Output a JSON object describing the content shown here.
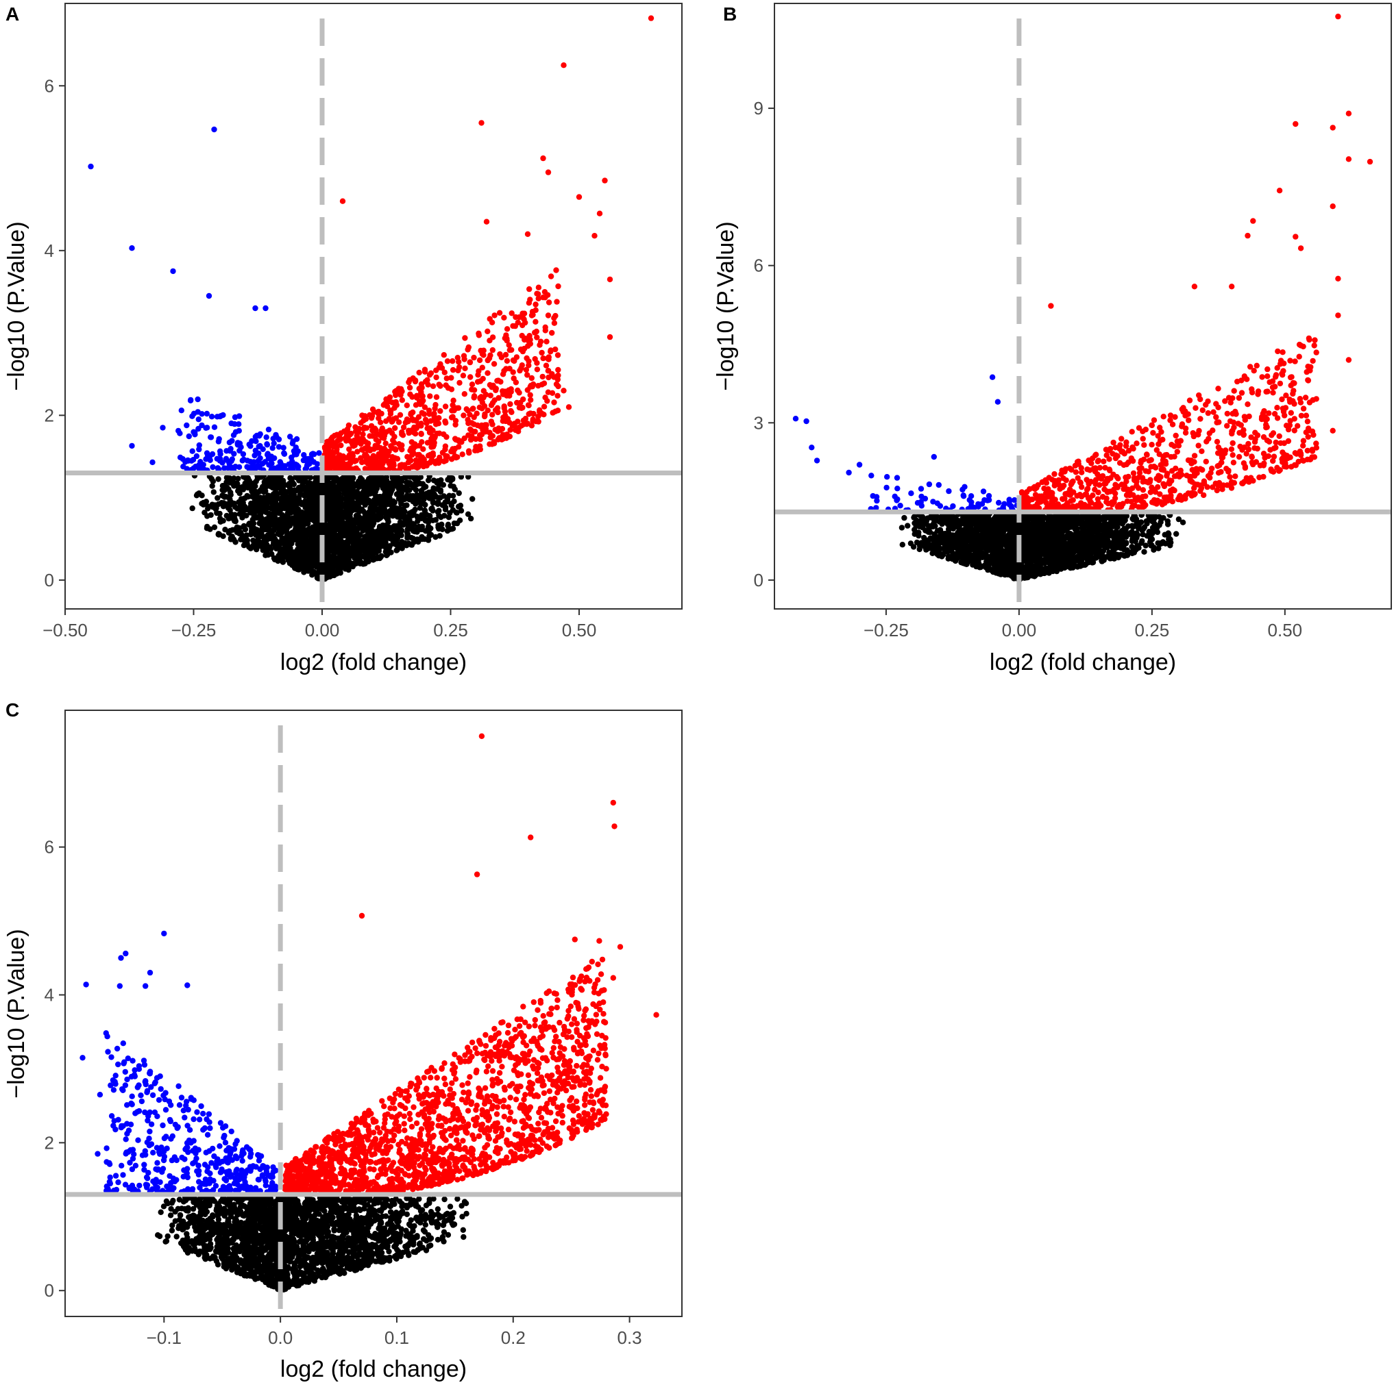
{
  "colors": {
    "up": "#ff0000",
    "down": "#0000ff",
    "ns": "#000000",
    "threshold": "#bebebe"
  },
  "chart_data": [
    {
      "panel": "A",
      "type": "scatter",
      "xlabel": "log2 (fold change)",
      "ylabel": "−log10 (P.Value)",
      "xlim": [
        -0.5,
        0.7
      ],
      "ylim": [
        -0.35,
        7.0
      ],
      "xticks": [
        -0.5,
        -0.25,
        0.0,
        0.25,
        0.5
      ],
      "xtick_labels": [
        "−0.50",
        "−0.25",
        "0.00",
        "0.25",
        "0.50"
      ],
      "yticks": [
        0,
        2,
        4,
        6
      ],
      "ytick_labels": [
        "0",
        "2",
        "4",
        "6"
      ],
      "vline": 0.0,
      "hline": 1.3,
      "outliers_up": [
        [
          0.64,
          6.82
        ],
        [
          0.47,
          6.25
        ],
        [
          0.31,
          5.55
        ],
        [
          0.43,
          5.12
        ],
        [
          0.44,
          4.95
        ],
        [
          0.55,
          4.85
        ],
        [
          0.5,
          4.65
        ],
        [
          0.54,
          4.45
        ],
        [
          0.53,
          4.18
        ],
        [
          0.04,
          4.6
        ],
        [
          0.56,
          3.65
        ],
        [
          0.56,
          2.95
        ],
        [
          0.47,
          2.3
        ],
        [
          0.48,
          2.1
        ],
        [
          0.32,
          4.35
        ],
        [
          0.4,
          4.2
        ]
      ],
      "outliers_down": [
        [
          -0.45,
          5.02
        ],
        [
          -0.21,
          5.47
        ],
        [
          -0.37,
          4.03
        ],
        [
          -0.29,
          3.75
        ],
        [
          -0.22,
          3.45
        ],
        [
          -0.13,
          3.3
        ],
        [
          -0.11,
          3.3
        ],
        [
          -0.37,
          1.63
        ],
        [
          -0.33,
          1.43
        ],
        [
          -0.31,
          1.85
        ]
      ],
      "cloud": {
        "up_xmax": 0.46,
        "up_ymax": 3.8,
        "down_xmin": -0.28,
        "down_ymax": 2.3,
        "ns_xmin": -0.26,
        "ns_xmax": 0.3,
        "n_up": 900,
        "n_down": 220,
        "n_ns": 2600
      }
    },
    {
      "panel": "B",
      "type": "scatter",
      "xlabel": "log2 (fold change)",
      "ylabel": "−log10 (P.Value)",
      "xlim": [
        -0.46,
        0.7
      ],
      "ylim": [
        -0.55,
        11.0
      ],
      "xticks": [
        -0.25,
        0.0,
        0.25,
        0.5
      ],
      "xtick_labels": [
        "−0.25",
        "0.00",
        "0.25",
        "0.50"
      ],
      "yticks": [
        0,
        3,
        6,
        9
      ],
      "ytick_labels": [
        "0",
        "3",
        "6",
        "9"
      ],
      "vline": 0.0,
      "hline": 1.3,
      "outliers_up": [
        [
          0.6,
          10.75
        ],
        [
          0.62,
          8.9
        ],
        [
          0.62,
          8.03
        ],
        [
          0.66,
          7.98
        ],
        [
          0.52,
          8.7
        ],
        [
          0.59,
          8.63
        ],
        [
          0.49,
          7.43
        ],
        [
          0.59,
          7.13
        ],
        [
          0.44,
          6.85
        ],
        [
          0.43,
          6.57
        ],
        [
          0.52,
          6.55
        ],
        [
          0.53,
          6.33
        ],
        [
          0.6,
          5.75
        ],
        [
          0.6,
          5.05
        ],
        [
          0.62,
          4.2
        ],
        [
          0.06,
          5.23
        ],
        [
          0.33,
          5.6
        ],
        [
          0.4,
          5.6
        ],
        [
          0.59,
          2.85
        ]
      ],
      "outliers_down": [
        [
          -0.42,
          3.08
        ],
        [
          -0.4,
          3.03
        ],
        [
          -0.39,
          2.53
        ],
        [
          -0.38,
          2.28
        ],
        [
          -0.32,
          2.05
        ],
        [
          -0.3,
          2.2
        ],
        [
          -0.16,
          2.35
        ],
        [
          -0.05,
          3.87
        ],
        [
          -0.04,
          3.4
        ]
      ],
      "cloud": {
        "up_xmax": 0.56,
        "up_ymax": 4.8,
        "down_xmin": -0.28,
        "down_ymax": 2.1,
        "ns_xmin": -0.23,
        "ns_xmax": 0.31,
        "n_up": 800,
        "n_down": 70,
        "n_ns": 2600
      }
    },
    {
      "panel": "C",
      "type": "scatter",
      "xlabel": "log2 (fold change)",
      "ylabel": "−log10 (P.Value)",
      "xlim": [
        -0.185,
        0.345
      ],
      "ylim": [
        -0.35,
        7.85
      ],
      "xticks": [
        -0.1,
        0.0,
        0.1,
        0.2,
        0.3
      ],
      "xtick_labels": [
        "−0.1",
        "0.0",
        "0.1",
        "0.2",
        "0.3"
      ],
      "yticks": [
        0,
        2,
        4,
        6
      ],
      "ytick_labels": [
        "0",
        "2",
        "4",
        "6"
      ],
      "vline": 0.0,
      "hline": 1.3,
      "outliers_up": [
        [
          0.173,
          7.5
        ],
        [
          0.286,
          6.6
        ],
        [
          0.287,
          6.28
        ],
        [
          0.215,
          6.13
        ],
        [
          0.169,
          5.63
        ],
        [
          0.07,
          5.07
        ],
        [
          0.292,
          4.65
        ],
        [
          0.253,
          4.75
        ],
        [
          0.274,
          4.73
        ],
        [
          0.323,
          3.73
        ],
        [
          0.286,
          4.23
        ]
      ],
      "outliers_down": [
        [
          -0.1,
          4.83
        ],
        [
          -0.133,
          4.56
        ],
        [
          -0.137,
          4.5
        ],
        [
          -0.167,
          4.14
        ],
        [
          -0.138,
          4.12
        ],
        [
          -0.116,
          4.12
        ],
        [
          -0.08,
          4.13
        ],
        [
          -0.112,
          4.3
        ],
        [
          -0.17,
          3.15
        ],
        [
          -0.155,
          2.65
        ],
        [
          -0.157,
          1.85
        ]
      ],
      "cloud": {
        "up_xmax": 0.28,
        "up_ymax": 4.6,
        "down_xmin": -0.15,
        "down_ymax": 3.6,
        "ns_xmin": -0.11,
        "ns_xmax": 0.165,
        "n_up": 1700,
        "n_down": 420,
        "n_ns": 2400
      }
    }
  ]
}
